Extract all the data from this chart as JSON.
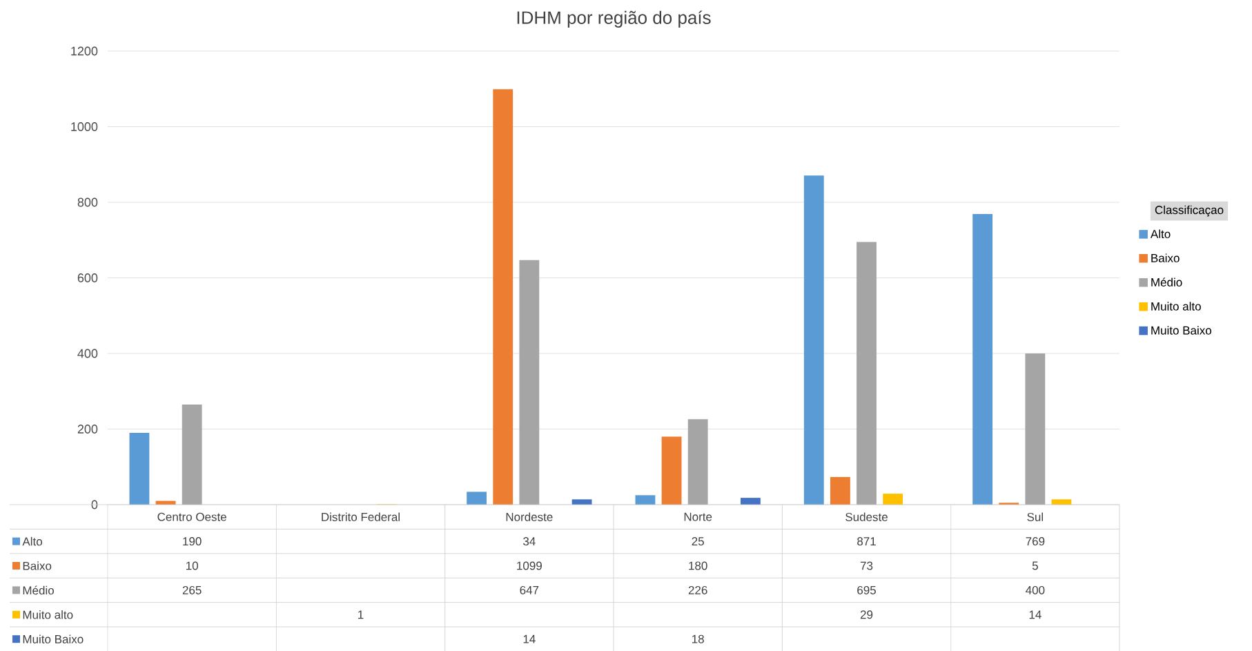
{
  "chart_data": {
    "type": "bar",
    "title": "IDHM por região do país",
    "categories": [
      "Centro Oeste",
      "Distrito Federal",
      "Nordeste",
      "Norte",
      "Sudeste",
      "Sul"
    ],
    "series": [
      {
        "name": "Alto",
        "color": "#5b9bd5",
        "values": [
          190,
          null,
          34,
          25,
          871,
          769
        ]
      },
      {
        "name": "Baixo",
        "color": "#ed7d31",
        "values": [
          10,
          null,
          1099,
          180,
          73,
          5
        ]
      },
      {
        "name": "Médio",
        "color": "#a5a5a5",
        "values": [
          265,
          null,
          647,
          226,
          695,
          400
        ]
      },
      {
        "name": "Muito alto",
        "color": "#ffc000",
        "values": [
          null,
          1,
          null,
          null,
          29,
          14
        ]
      },
      {
        "name": "Muito Baixo",
        "color": "#4472c4",
        "values": [
          null,
          null,
          14,
          18,
          null,
          null
        ]
      }
    ],
    "legend_title": "Classificaçao",
    "ylim": [
      0,
      1200
    ],
    "yticks": [
      0,
      200,
      400,
      600,
      800,
      1000,
      1200
    ],
    "grid": "y",
    "legend": "right",
    "data_labels": true
  }
}
